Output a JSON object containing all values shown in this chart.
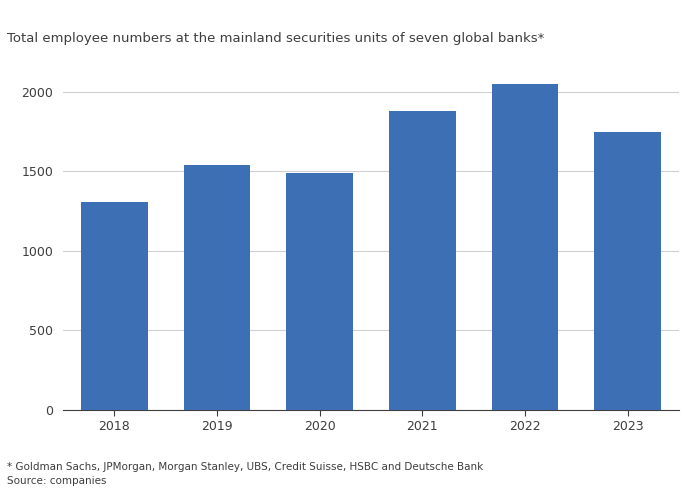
{
  "years": [
    "2018",
    "2019",
    "2020",
    "2021",
    "2022",
    "2023"
  ],
  "values": [
    1310,
    1540,
    1490,
    1880,
    2050,
    1750
  ],
  "bar_color": "#3d6fb5",
  "title": "Total employee numbers at the mainland securities units of seven global banks*",
  "ylim": [
    0,
    2200
  ],
  "yticks": [
    0,
    500,
    1000,
    1500,
    2000
  ],
  "footnote1": "* Goldman Sachs, JPMorgan, Morgan Stanley, UBS, Credit Suisse, HSBC and Deutsche Bank",
  "footnote2": "Source: companies",
  "background_color": "#ffffff",
  "text_color": "#3d3d3d",
  "grid_color": "#d0d0d0",
  "title_fontsize": 9.5,
  "tick_fontsize": 9,
  "footnote_fontsize": 7.5
}
